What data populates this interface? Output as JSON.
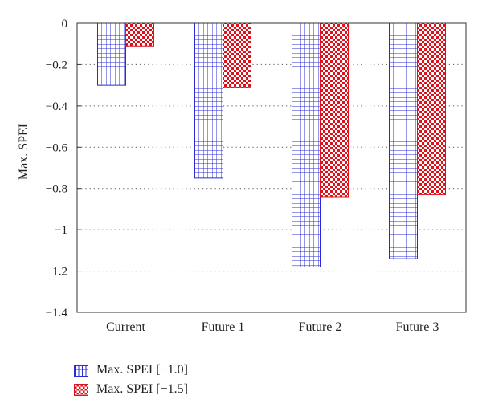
{
  "chart_data": {
    "type": "bar",
    "categories": [
      "Current",
      "Future 1",
      "Future 2",
      "Future 3"
    ],
    "series": [
      {
        "name": "Max. SPEI [−1.0]",
        "values": [
          -0.3,
          -0.75,
          -1.18,
          -1.14
        ],
        "color": "#2b2bd6",
        "pattern": "grid"
      },
      {
        "name": "Max. SPEI [−1.5]",
        "values": [
          -0.11,
          -0.31,
          -0.84,
          -0.83
        ],
        "color": "#e0101a",
        "pattern": "checker"
      }
    ],
    "ylabel": "Max. SPEI",
    "xlabel": "",
    "ylim": [
      -1.4,
      0
    ],
    "yticks": [
      0,
      -0.2,
      -0.4,
      -0.6,
      -0.8,
      -1,
      -1.2,
      -1.4
    ],
    "ytick_labels": [
      "0",
      "−0.2",
      "−0.4",
      "−0.6",
      "−0.8",
      "−1",
      "−1.2",
      "−1.4"
    ],
    "grid": "horizontal-dotted",
    "legend_position": "bottom-left"
  }
}
